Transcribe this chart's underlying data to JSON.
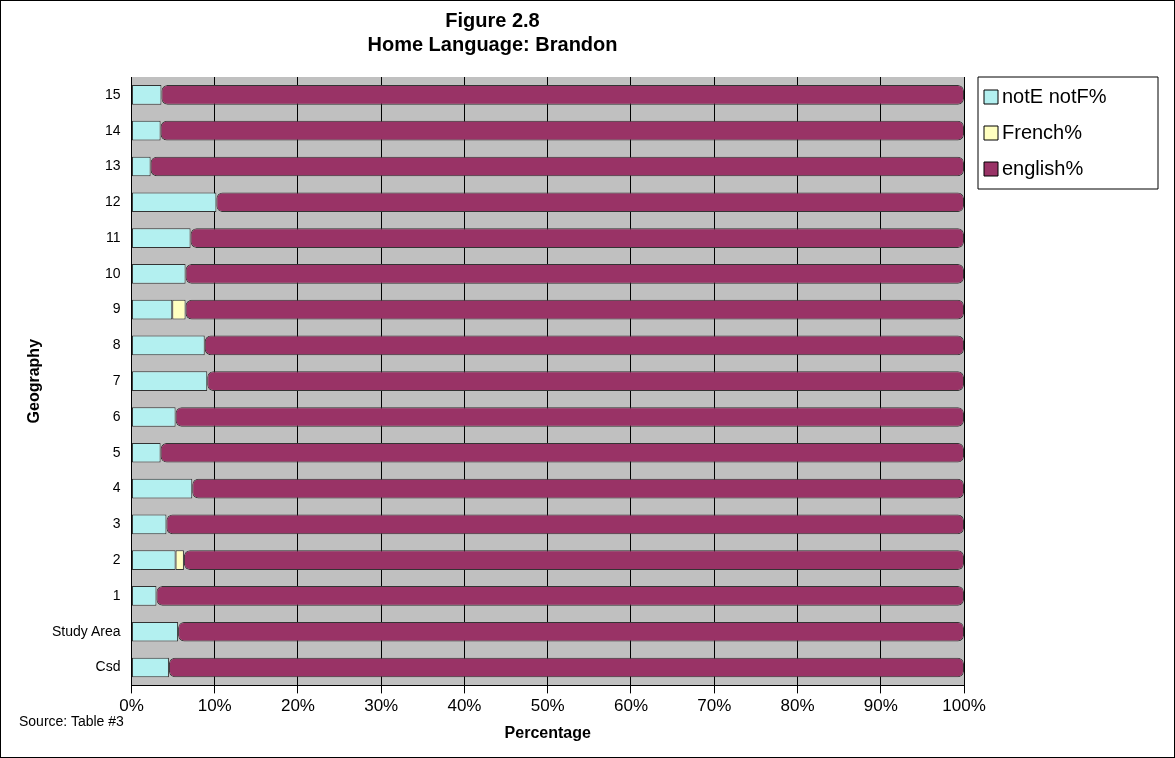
{
  "chart_data": {
    "type": "bar",
    "orientation": "horizontal",
    "stacked": true,
    "title": [
      "Figure 2.8",
      "Home Language: Brandon"
    ],
    "xlabel": "Percentage",
    "ylabel": "Geography",
    "annotations": [
      "Source: Table #3"
    ],
    "categories": [
      "15",
      "14",
      "13",
      "12",
      "11",
      "10",
      "9",
      "8",
      "7",
      "6",
      "5",
      "4",
      "3",
      "2",
      "1",
      "Study Area",
      "Csd"
    ],
    "series": [
      {
        "name": "notE notF%",
        "color": "#b3f0f0",
        "values": [
          3.6,
          3.5,
          2.3,
          10.2,
          7.1,
          6.5,
          4.9,
          8.8,
          9.1,
          5.3,
          3.5,
          7.3,
          4.2,
          5.3,
          3.0,
          5.6,
          4.5
        ]
      },
      {
        "name": "French%",
        "color": "#ffffc0",
        "values": [
          0,
          0,
          0,
          0,
          0,
          0,
          1.6,
          0,
          0,
          0,
          0,
          0,
          0,
          1.0,
          0,
          0,
          0
        ]
      },
      {
        "name": "english%",
        "color": "#993366",
        "values": [
          96.4,
          96.5,
          97.7,
          89.8,
          92.9,
          93.5,
          93.5,
          91.2,
          90.9,
          94.7,
          96.5,
          92.7,
          95.8,
          93.7,
          97.0,
          94.4,
          95.5
        ]
      }
    ],
    "xlim": [
      0,
      100
    ],
    "xticks": [
      {
        "value": 0,
        "label": "0%"
      },
      {
        "value": 10,
        "label": "10%"
      },
      {
        "value": 20,
        "label": "20%"
      },
      {
        "value": 30,
        "label": "30%"
      },
      {
        "value": 40,
        "label": "40%"
      },
      {
        "value": 50,
        "label": "50%"
      },
      {
        "value": 60,
        "label": "60%"
      },
      {
        "value": 70,
        "label": "70%"
      },
      {
        "value": 80,
        "label": "80%"
      },
      {
        "value": 90,
        "label": "90%"
      },
      {
        "value": 100,
        "label": "100%"
      }
    ],
    "grid": "x",
    "legend": "top right"
  }
}
